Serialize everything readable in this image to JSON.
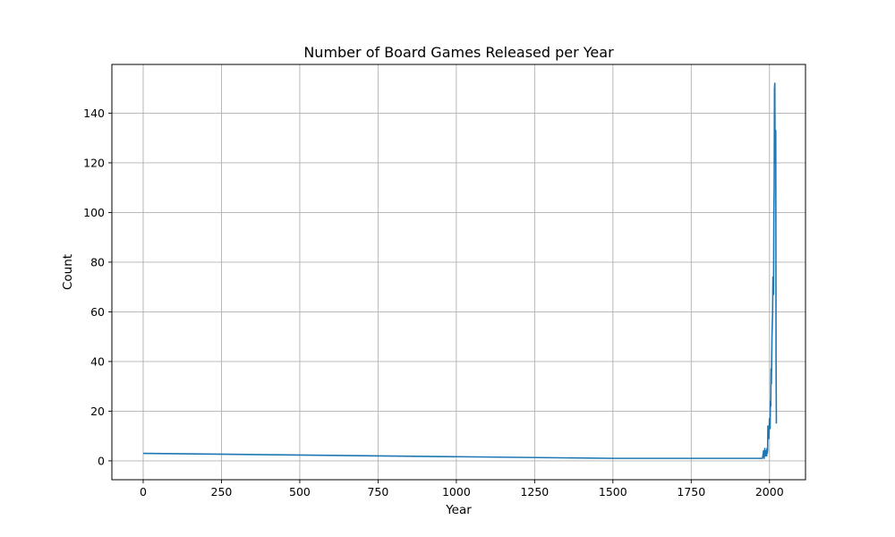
{
  "chart_data": {
    "type": "line",
    "title": "Number of Board Games Released per Year",
    "xlabel": "Year",
    "ylabel": "Count",
    "xlim": [
      -100,
      2115
    ],
    "ylim": [
      -7.6,
      159.6
    ],
    "xticks": [
      0,
      250,
      500,
      750,
      1000,
      1250,
      1500,
      1750,
      2000
    ],
    "yticks": [
      0,
      20,
      40,
      60,
      80,
      100,
      120,
      140
    ],
    "grid": true,
    "line_color": "#1f77b4",
    "series": [
      {
        "x": [
          0,
          1500,
          1975,
          1977,
          1979,
          1981,
          1983,
          1985,
          1987,
          1989,
          1990,
          1991,
          1992,
          1993,
          1994,
          1995,
          1996,
          1997,
          1998,
          1999,
          2000,
          2001,
          2002,
          2003,
          2004,
          2005,
          2006,
          2007,
          2008,
          2009,
          2010,
          2011,
          2012,
          2013,
          2014,
          2015,
          2016,
          2017,
          2018,
          2019,
          2020,
          2021,
          2022
        ],
        "y": [
          3,
          1,
          1,
          1,
          2,
          4,
          1,
          5,
          2,
          4,
          3,
          2,
          5,
          3,
          4,
          14,
          10,
          12,
          9,
          13,
          17,
          15,
          13,
          24,
          22,
          37,
          31,
          40,
          50,
          55,
          60,
          74,
          70,
          67,
          100,
          110,
          150,
          152,
          120,
          130,
          133,
          40,
          15
        ]
      }
    ]
  }
}
